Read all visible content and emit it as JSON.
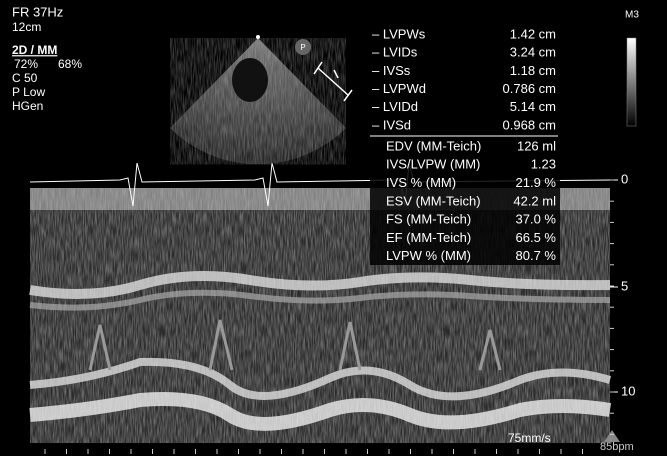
{
  "header": {
    "frame_rate": "FR 37Hz",
    "depth": "12cm",
    "mode": "2D / MM",
    "gain_2d": "72%",
    "gain_mm": "68%",
    "compression": "C 50",
    "power": "P Low",
    "frequency": "HGen"
  },
  "probe_icon": "P",
  "colormap_label": "M3",
  "measurements": [
    {
      "name": "– LVPWs",
      "value": "1.42 cm"
    },
    {
      "name": "– LVIDs",
      "value": "3.24 cm"
    },
    {
      "name": "– IVSs",
      "value": "1.18 cm"
    },
    {
      "name": "– LVPWd",
      "value": "0.786 cm"
    },
    {
      "name": "– LVIDd",
      "value": "5.14 cm"
    },
    {
      "name": "– IVSd",
      "value": "0.968 cm"
    }
  ],
  "calculations": [
    {
      "name": "EDV (MM-Teich)",
      "value": "126 ml"
    },
    {
      "name": "IVS/LVPW (MM)",
      "value": "1.23"
    },
    {
      "name": "IVS % (MM)",
      "value": "21.9 %"
    },
    {
      "name": "ESV (MM-Teich)",
      "value": "42.2 ml"
    },
    {
      "name": "FS (MM-Teich)",
      "value": "37.0 %"
    },
    {
      "name": "EF (MM-Teich)",
      "value": "66.5 %"
    },
    {
      "name": "LVPW % (MM)",
      "value": "80.7 %"
    }
  ],
  "depth_scale": [
    "0",
    "5",
    "10"
  ],
  "sweep_speed": "75mm/s",
  "heart_rate": "85bpm"
}
